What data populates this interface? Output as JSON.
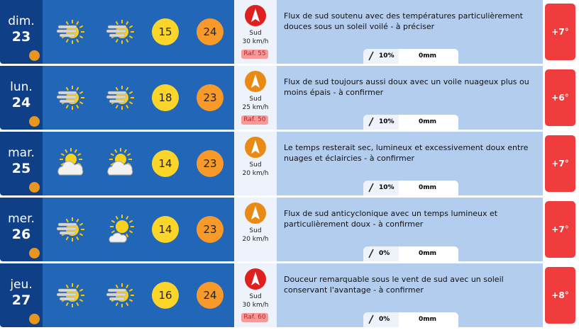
{
  "days": [
    {
      "day": "dim.",
      "date": "23",
      "min": "15",
      "max": "24",
      "wind_dir": "Sud",
      "wind_speed": "30 km/h",
      "gust": "Raf. 55",
      "wind_color": "#e0201e",
      "text": "Flux de sud soutenu avec des températures particulièrement douces sous un soleil voilé - à préciser",
      "rain_prob": "10%",
      "rain_mm": "0mm",
      "anomaly": "+7°"
    },
    {
      "day": "lun.",
      "date": "24",
      "min": "18",
      "max": "23",
      "wind_dir": "Sud",
      "wind_speed": "25 km/h",
      "gust": "Raf. 50",
      "wind_color": "#e88a14",
      "text": "Flux de sud toujours aussi doux avec un voile nuageux plus ou moins épais - à confirmer",
      "rain_prob": "10%",
      "rain_mm": "0mm",
      "anomaly": "+6°"
    },
    {
      "day": "mar.",
      "date": "25",
      "min": "14",
      "max": "23",
      "wind_dir": "Sud",
      "wind_speed": "20 km/h",
      "wind_color": "#e88a14",
      "text": "Le temps resterait sec, lumineux et excessivement doux entre nuages et éclaircies - à confirmer",
      "rain_prob": "10%",
      "rain_mm": "0mm",
      "anomaly": "+7°"
    },
    {
      "day": "mer.",
      "date": "26",
      "min": "14",
      "max": "23",
      "wind_dir": "Sud",
      "wind_speed": "20 km/h",
      "wind_color": "#e88a14",
      "text": "Flux de sud anticyclonique avec un temps lumineux et particulièrement doux - à confirmer",
      "rain_prob": "0%",
      "rain_mm": "0mm",
      "anomaly": "+7°"
    },
    {
      "day": "jeu.",
      "date": "27",
      "min": "16",
      "max": "24",
      "wind_dir": "Sud",
      "wind_speed": "30 km/h",
      "gust": "Raf. 60",
      "wind_color": "#e0201e",
      "text": "Douceur remarquable sous le vent de sud avec un soleil conservant l'avantage - à confirmer",
      "rain_prob": "0%",
      "rain_mm": "0mm",
      "anomaly": "+8°"
    }
  ]
}
